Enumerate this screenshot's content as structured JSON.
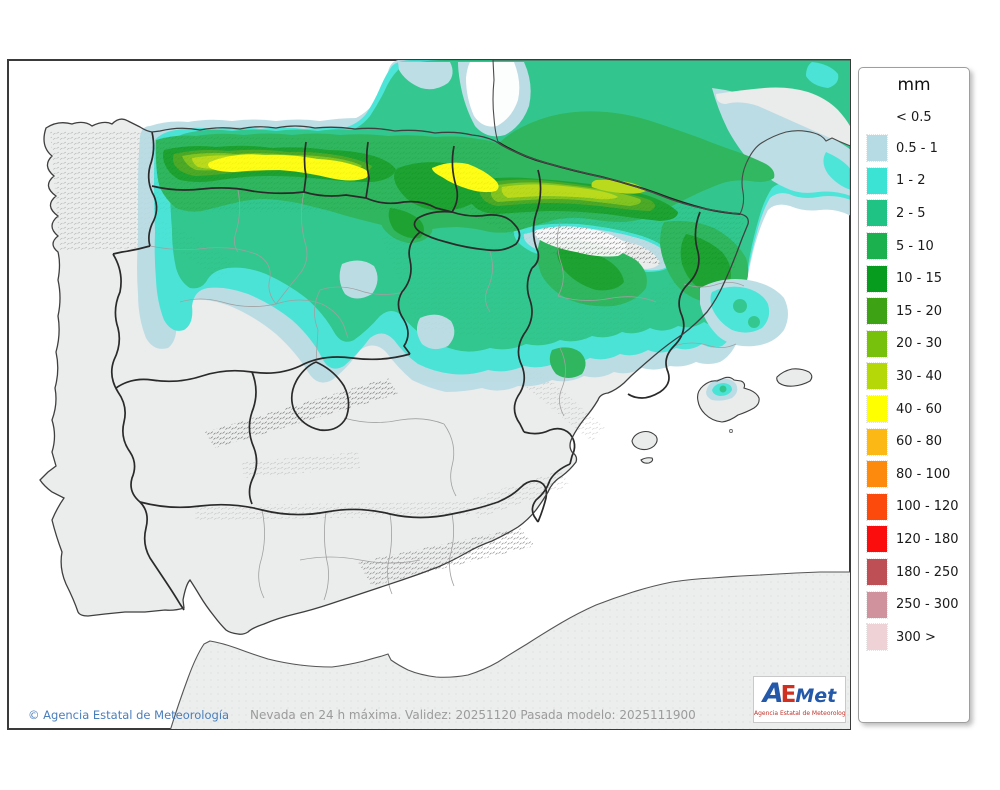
{
  "legend": {
    "title": "mm",
    "below_threshold_label": "< 0.5",
    "entries": [
      {
        "range": "0.5 - 1",
        "color": "#b7dbe4"
      },
      {
        "range": "1 - 2",
        "color": "#3be3d5"
      },
      {
        "range": "2 - 5",
        "color": "#1fc384"
      },
      {
        "range": "5 - 10",
        "color": "#1cb14f"
      },
      {
        "range": "10 - 15",
        "color": "#089c1e"
      },
      {
        "range": "15 - 20",
        "color": "#3da314"
      },
      {
        "range": "20 - 30",
        "color": "#77c10d"
      },
      {
        "range": "30 - 40",
        "color": "#b5d908"
      },
      {
        "range": "40 - 60",
        "color": "#ffff00"
      },
      {
        "range": "60 - 80",
        "color": "#fcb814"
      },
      {
        "range": "80 - 100",
        "color": "#fd8a0d"
      },
      {
        "range": "100 - 120",
        "color": "#fc4a0d"
      },
      {
        "range": "120 - 180",
        "color": "#fc0d0d"
      },
      {
        "range": "180 - 250",
        "color": "#bd4f55"
      },
      {
        "range": "250 - 300",
        "color": "#d0929c"
      },
      {
        "range": "300 >",
        "color": "#eed2d6"
      }
    ]
  },
  "map": {
    "copyright": "© Agencia Estatal de Meteorología",
    "caption": "Nevada en 24 h máxima. Validez: 20251120 Pasada modelo: 2025111900"
  },
  "logo": {
    "part_a": "A",
    "part_e": "E",
    "part_met": "Met",
    "subtitle": "Agencia Estatal de Meteorología"
  },
  "colors": {
    "sea": "#ffffff",
    "land": "#ebebeb",
    "coastline": "#4a4a4a",
    "region_border": "#2a2a2a",
    "province_border": "#a0a0a0",
    "copyright_text": "#4a7ebb",
    "caption_text": "#9b9b9b"
  }
}
